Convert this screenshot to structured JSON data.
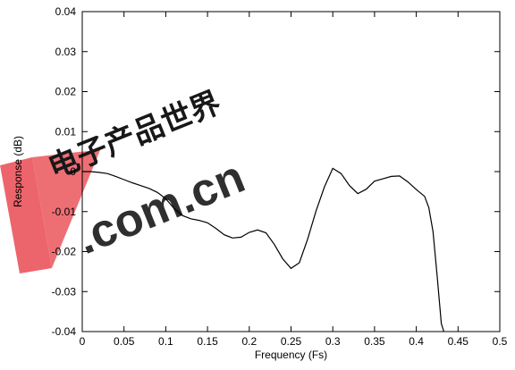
{
  "chart_data": {
    "type": "line",
    "xlabel": "Frequency (Fs)",
    "ylabel": "Response (dB)",
    "xlim": [
      0,
      0.5
    ],
    "ylim": [
      -0.04,
      0.04
    ],
    "grid": false,
    "legend": "none",
    "x_ticks": [
      "0",
      "0.05",
      "0.1",
      "0.15",
      "0.2",
      "0.25",
      "0.3",
      "0.35",
      "0.4",
      "0.45",
      "0.5"
    ],
    "y_ticks": [
      "0.04",
      "0.03",
      "0.02",
      "0.01",
      "0",
      "-0.01",
      "-0.02",
      "-0.03",
      "-0.04"
    ],
    "series": [
      {
        "color": "#000000",
        "x": [
          0,
          0.01,
          0.02,
          0.03,
          0.04,
          0.05,
          0.06,
          0.07,
          0.08,
          0.09,
          0.1,
          0.11,
          0.12,
          0.13,
          0.14,
          0.15,
          0.16,
          0.17,
          0.18,
          0.19,
          0.2,
          0.21,
          0.22,
          0.23,
          0.24,
          0.25,
          0.26,
          0.27,
          0.28,
          0.29,
          0.3,
          0.31,
          0.32,
          0.33,
          0.34,
          0.35,
          0.36,
          0.37,
          0.38,
          0.39,
          0.4,
          0.41,
          0.415,
          0.42,
          0.425,
          0.43,
          0.433
        ],
        "y": [
          0,
          0,
          -0.0002,
          -0.0005,
          -0.0012,
          -0.002,
          -0.0028,
          -0.0035,
          -0.0042,
          -0.0052,
          -0.0068,
          -0.0092,
          -0.011,
          -0.0118,
          -0.0122,
          -0.0128,
          -0.0142,
          -0.0158,
          -0.0166,
          -0.0164,
          -0.0152,
          -0.0146,
          -0.0153,
          -0.0182,
          -0.0218,
          -0.0242,
          -0.0228,
          -0.0168,
          -0.0098,
          -0.0038,
          0.0008,
          -0.0005,
          -0.0035,
          -0.0055,
          -0.0044,
          -0.0024,
          -0.0018,
          -0.0012,
          -0.0011,
          -0.0026,
          -0.0045,
          -0.0062,
          -0.009,
          -0.015,
          -0.026,
          -0.038,
          -0.04
        ]
      }
    ]
  },
  "watermark": {
    "cjk": "电子产品世界",
    "latin": ".com.cn",
    "color": "#e8434a"
  }
}
